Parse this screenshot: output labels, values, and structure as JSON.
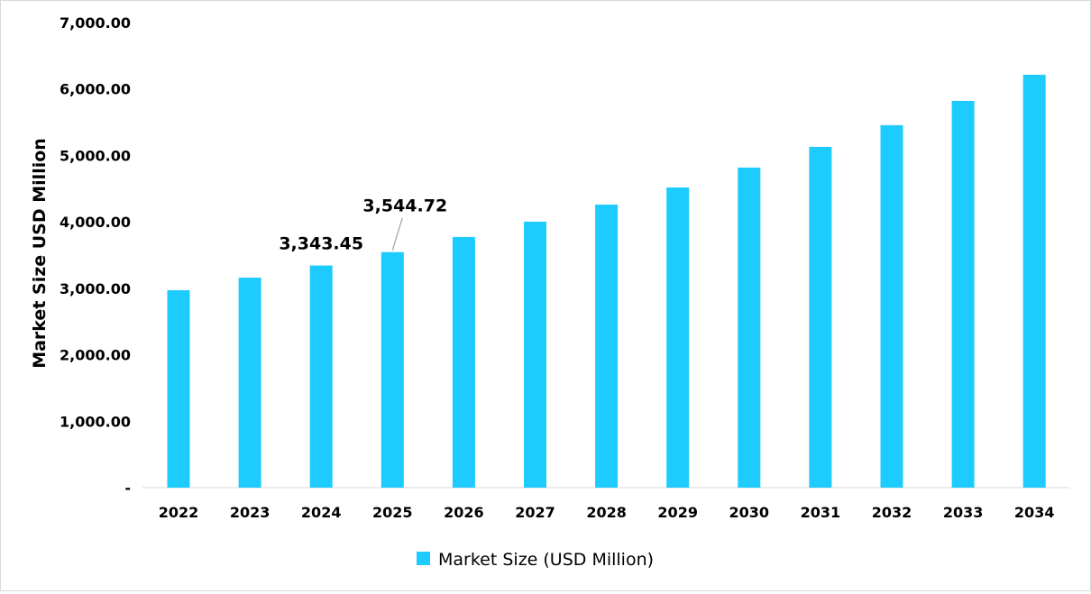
{
  "chart_data": {
    "type": "bar",
    "title": "",
    "xlabel": "",
    "ylabel": "Market Size USD Million",
    "ylim": [
      0,
      7000
    ],
    "yticks": [
      0,
      1000,
      2000,
      3000,
      4000,
      5000,
      6000,
      7000
    ],
    "ytick_labels": [
      "-",
      "1,000.00",
      "2,000.00",
      "3,000.00",
      "4,000.00",
      "5,000.00",
      "6,000.00",
      "7,000.00"
    ],
    "grid": false,
    "legend_position": "bottom",
    "categories": [
      "2022",
      "2023",
      "2024",
      "2025",
      "2026",
      "2027",
      "2028",
      "2029",
      "2030",
      "2031",
      "2032",
      "2033",
      "2034"
    ],
    "series": [
      {
        "name": "Market Size (USD Million)",
        "color": "#1ECBFE",
        "values": [
          2971,
          3161,
          3343.45,
          3544.72,
          3772,
          4003,
          4260,
          4518,
          4817,
          5129,
          5455,
          5821,
          6214
        ]
      }
    ],
    "annotations": [
      {
        "category": "2024",
        "text": "3,343.45"
      },
      {
        "category": "2025",
        "text": "3,544.72"
      }
    ]
  }
}
